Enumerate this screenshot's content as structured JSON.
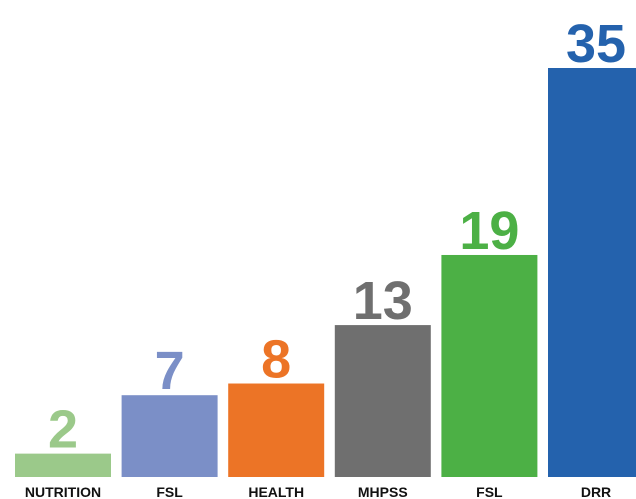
{
  "chart_data": {
    "type": "bar",
    "categories": [
      "NUTRITION",
      "FSL",
      "HEALTH",
      "MHPSS",
      "FSL",
      "DRR"
    ],
    "values": [
      2,
      7,
      8,
      13,
      19,
      35
    ],
    "colors": [
      "#9bc98a",
      "#7b8fc7",
      "#ec7426",
      "#6f6f6f",
      "#4cb045",
      "#2462ad"
    ]
  }
}
